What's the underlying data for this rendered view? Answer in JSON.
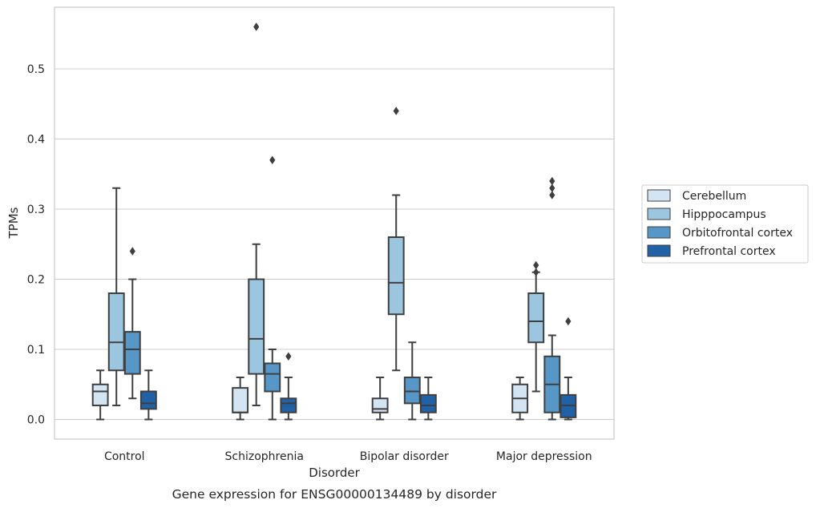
{
  "chart_data": {
    "type": "box",
    "xlabel": "Disorder",
    "ylabel": "TPMs",
    "caption": "Gene expression for ENSG00000134489 by disorder",
    "ylim": [
      -0.028,
      0.588
    ],
    "yticks": [
      0.0,
      0.1,
      0.2,
      0.3,
      0.4,
      0.5
    ],
    "ytick_labels": [
      "0.0",
      "0.1",
      "0.2",
      "0.3",
      "0.4",
      "0.5"
    ],
    "grid": "horizontal",
    "legend_position": "right",
    "categories": [
      "Control",
      "Schizophrenia",
      "Bipolar disorder",
      "Major depression"
    ],
    "series": [
      {
        "name": "Cerebellum",
        "color": "#d3e4f3",
        "boxes": [
          {
            "whisker_low": 0.0,
            "q1": 0.02,
            "median": 0.04,
            "q3": 0.05,
            "whisker_high": 0.07,
            "outliers": []
          },
          {
            "whisker_low": 0.0,
            "q1": 0.01,
            "median": 0.01,
            "q3": 0.045,
            "whisker_high": 0.06,
            "outliers": []
          },
          {
            "whisker_low": 0.0,
            "q1": 0.01,
            "median": 0.015,
            "q3": 0.03,
            "whisker_high": 0.06,
            "outliers": []
          },
          {
            "whisker_low": 0.0,
            "q1": 0.01,
            "median": 0.03,
            "q3": 0.05,
            "whisker_high": 0.06,
            "outliers": []
          }
        ]
      },
      {
        "name": "Hipppocampus",
        "color": "#9cc5df",
        "boxes": [
          {
            "whisker_low": 0.02,
            "q1": 0.07,
            "median": 0.11,
            "q3": 0.18,
            "whisker_high": 0.33,
            "outliers": []
          },
          {
            "whisker_low": 0.02,
            "q1": 0.065,
            "median": 0.115,
            "q3": 0.2,
            "whisker_high": 0.25,
            "outliers": [
              0.56
            ]
          },
          {
            "whisker_low": 0.07,
            "q1": 0.15,
            "median": 0.195,
            "q3": 0.26,
            "whisker_high": 0.32,
            "outliers": [
              0.44
            ]
          },
          {
            "whisker_low": 0.04,
            "q1": 0.11,
            "median": 0.14,
            "q3": 0.18,
            "whisker_high": 0.21,
            "outliers": [
              0.22,
              0.21
            ]
          }
        ]
      },
      {
        "name": "Orbitofrontal cortex",
        "color": "#5697c8",
        "boxes": [
          {
            "whisker_low": 0.03,
            "q1": 0.065,
            "median": 0.1,
            "q3": 0.125,
            "whisker_high": 0.2,
            "outliers": [
              0.24
            ]
          },
          {
            "whisker_low": 0.0,
            "q1": 0.04,
            "median": 0.065,
            "q3": 0.08,
            "whisker_high": 0.1,
            "outliers": [
              0.37
            ]
          },
          {
            "whisker_low": 0.0,
            "q1": 0.023,
            "median": 0.04,
            "q3": 0.06,
            "whisker_high": 0.11,
            "outliers": []
          },
          {
            "whisker_low": 0.0,
            "q1": 0.01,
            "median": 0.05,
            "q3": 0.09,
            "whisker_high": 0.12,
            "outliers": [
              0.34,
              0.32,
              0.33
            ]
          }
        ]
      },
      {
        "name": "Prefrontal cortex",
        "color": "#2162a6",
        "boxes": [
          {
            "whisker_low": 0.0,
            "q1": 0.015,
            "median": 0.023,
            "q3": 0.04,
            "whisker_high": 0.07,
            "outliers": []
          },
          {
            "whisker_low": 0.0,
            "q1": 0.01,
            "median": 0.023,
            "q3": 0.03,
            "whisker_high": 0.06,
            "outliers": [
              0.09
            ]
          },
          {
            "whisker_low": 0.0,
            "q1": 0.01,
            "median": 0.02,
            "q3": 0.035,
            "whisker_high": 0.06,
            "outliers": []
          },
          {
            "whisker_low": 0.0,
            "q1": 0.003,
            "median": 0.02,
            "q3": 0.035,
            "whisker_high": 0.06,
            "outliers": [
              0.14
            ]
          }
        ]
      }
    ]
  }
}
